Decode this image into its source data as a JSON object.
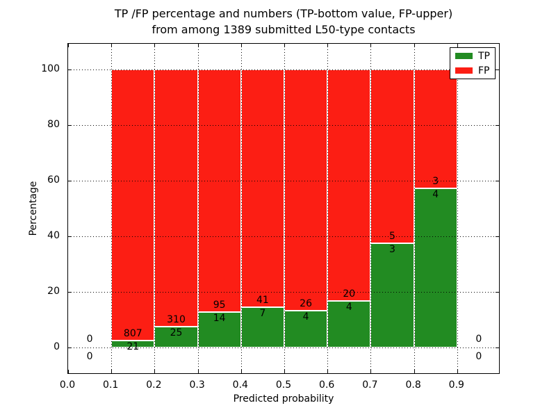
{
  "chart_data": {
    "type": "bar",
    "stacked": true,
    "units": "percent-of-bin",
    "title_lines": [
      "TP /FP percentage and numbers (TP-bottom value, FP-upper)",
      "from among 1389 submitted L50-type contacts"
    ],
    "xlabel": "Predicted probability",
    "ylabel": "Percentage",
    "x_tick_labels": [
      "0.0",
      "0.1",
      "0.2",
      "0.3",
      "0.4",
      "0.5",
      "0.6",
      "0.7",
      "0.8",
      "0.9"
    ],
    "y_tick_labels": [
      "0",
      "20",
      "40",
      "60",
      "80",
      "100"
    ],
    "y_tick_values": [
      0,
      20,
      40,
      60,
      80,
      100
    ],
    "xlim": [
      0.0,
      1.0
    ],
    "ylim": [
      -9.75,
      109.25
    ],
    "grid": "dotted",
    "grid_on_top": true,
    "bin_edges": [
      0.0,
      0.1,
      0.2,
      0.3,
      0.4,
      0.5,
      0.6,
      0.7,
      0.8,
      0.9,
      1.0
    ],
    "series": [
      {
        "name": "TP",
        "color": "#228b22",
        "values": [
          0,
          21,
          25,
          14,
          7,
          4,
          4,
          3,
          4,
          0
        ]
      },
      {
        "name": "FP",
        "color": "#fc1e14",
        "values": [
          0,
          807,
          310,
          95,
          41,
          26,
          20,
          5,
          3,
          0
        ]
      }
    ],
    "tp_percentages": [
      null,
      2.54,
      7.46,
      12.84,
      14.58,
      13.33,
      16.67,
      37.5,
      57.14,
      null
    ],
    "total_submitted": "1389",
    "legend": {
      "position": "upper-right",
      "entries": [
        {
          "label": "TP",
          "color": "#228b22"
        },
        {
          "label": "FP",
          "color": "#fc1e14"
        }
      ]
    }
  }
}
